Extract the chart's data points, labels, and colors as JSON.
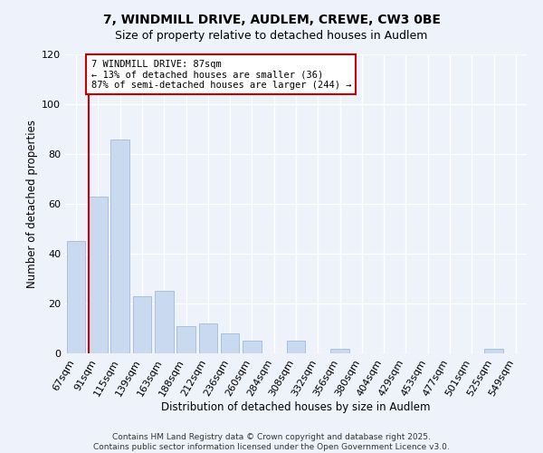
{
  "title": "7, WINDMILL DRIVE, AUDLEM, CREWE, CW3 0BE",
  "subtitle": "Size of property relative to detached houses in Audlem",
  "xlabel": "Distribution of detached houses by size in Audlem",
  "ylabel": "Number of detached properties",
  "categories": [
    "67sqm",
    "91sqm",
    "115sqm",
    "139sqm",
    "163sqm",
    "188sqm",
    "212sqm",
    "236sqm",
    "260sqm",
    "284sqm",
    "308sqm",
    "332sqm",
    "356sqm",
    "380sqm",
    "404sqm",
    "429sqm",
    "453sqm",
    "477sqm",
    "501sqm",
    "525sqm",
    "549sqm"
  ],
  "values": [
    45,
    63,
    86,
    23,
    25,
    11,
    12,
    8,
    5,
    0,
    5,
    0,
    2,
    0,
    0,
    0,
    0,
    0,
    0,
    2,
    0
  ],
  "bar_color": "#c9d9f0",
  "bar_edgecolor": "#a8c0de",
  "marker_line_color": "#cc0000",
  "annotation_title": "7 WINDMILL DRIVE: 87sqm",
  "annotation_line2": "← 13% of detached houses are smaller (36)",
  "annotation_line3": "87% of semi-detached houses are larger (244) →",
  "annotation_box_edgecolor": "#cc0000",
  "ylim": [
    0,
    120
  ],
  "yticks": [
    0,
    20,
    40,
    60,
    80,
    100,
    120
  ],
  "footer_line1": "Contains HM Land Registry data © Crown copyright and database right 2025.",
  "footer_line2": "Contains public sector information licensed under the Open Government Licence v3.0.",
  "bg_color": "#eef2fb",
  "plot_bg_color": "#eef2fb",
  "grid_color": "#ffffff",
  "title_fontsize": 10,
  "subtitle_fontsize": 9,
  "axis_label_fontsize": 8.5,
  "tick_fontsize": 8,
  "footer_fontsize": 6.5
}
